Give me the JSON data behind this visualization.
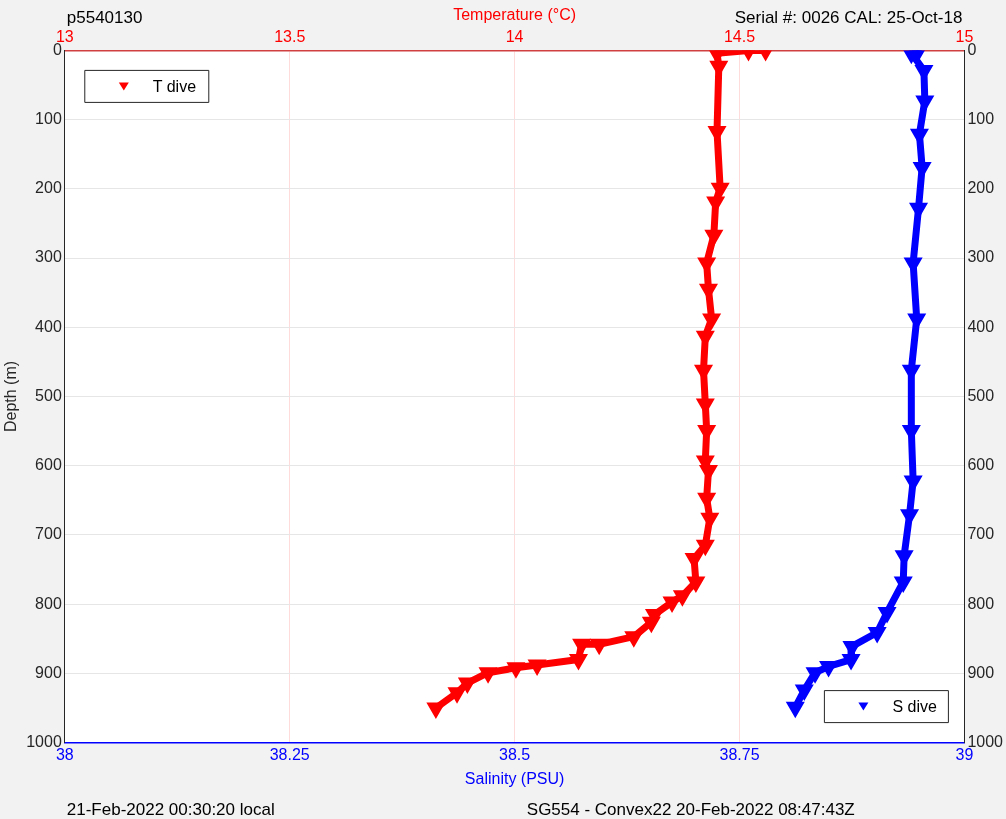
{
  "chart_data": {
    "type": "line",
    "xlabel": "Salinity (PSU)",
    "x2label": "Temperature (°C)",
    "ylabel": "Depth (m)",
    "annotations": [
      "p5540130",
      "Serial #: 0026 CAL: 25-Oct-18",
      "21-Feb-2022 00:30:20 local",
      "SG554 - Convex22 20-Feb-2022 08:47:43Z"
    ],
    "xlim": [
      38,
      39
    ],
    "xticks": [
      38,
      38.25,
      38.5,
      38.75,
      39
    ],
    "x2lim": [
      13,
      15
    ],
    "x2ticks": [
      13,
      13.5,
      14,
      14.5,
      15
    ],
    "ylim": [
      1000,
      0
    ],
    "yticks": [
      0,
      100,
      200,
      300,
      400,
      500,
      600,
      700,
      800,
      900,
      1000
    ],
    "y2lim": [
      1000,
      0
    ],
    "y2ticks": [
      0,
      100,
      200,
      300,
      400,
      500,
      600,
      700,
      800,
      900,
      1000
    ],
    "grid": true,
    "legend": "top left",
    "marker": "triangle",
    "line_style": "solid",
    "series": [
      {
        "name": "T dive",
        "color": "#ff0000",
        "axis": "x2",
        "x": [
          14.558,
          14.52,
          14.45,
          14.454,
          14.45,
          14.457,
          14.447,
          14.443,
          14.427,
          14.431,
          14.438,
          14.424,
          14.42,
          14.424,
          14.427,
          14.424,
          14.431,
          14.427,
          14.434,
          14.424,
          14.399,
          14.403,
          14.373,
          14.35,
          14.311,
          14.304,
          14.265,
          14.188,
          14.149,
          14.142,
          14.05,
          14.003,
          13.941,
          13.895,
          13.872,
          13.825
        ],
        "values": [
          0,
          0,
          4,
          23,
          117,
          199,
          219,
          267,
          307,
          345,
          388,
          413,
          462,
          511,
          549,
          593,
          607,
          647,
          676,
          715,
          734,
          768,
          788,
          797,
          815,
          826,
          847,
          858,
          858,
          880,
          888,
          892,
          899,
          914,
          928,
          950
        ]
      },
      {
        "name": "S dive",
        "color": "#0000ff",
        "x": [
          38.949,
          38.941,
          38.955,
          38.956,
          38.95,
          38.953,
          38.949,
          38.943,
          38.947,
          38.941,
          38.941,
          38.943,
          38.939,
          38.933,
          38.932,
          38.914,
          38.903,
          38.875,
          38.874,
          38.849,
          38.834,
          38.822,
          38.812
        ],
        "values": [
          0,
          4,
          29,
          73,
          121,
          169,
          228,
          307,
          388,
          462,
          549,
          622,
          671,
          730,
          768,
          812,
          841,
          861,
          880,
          890,
          899,
          924,
          949
        ]
      }
    ]
  }
}
